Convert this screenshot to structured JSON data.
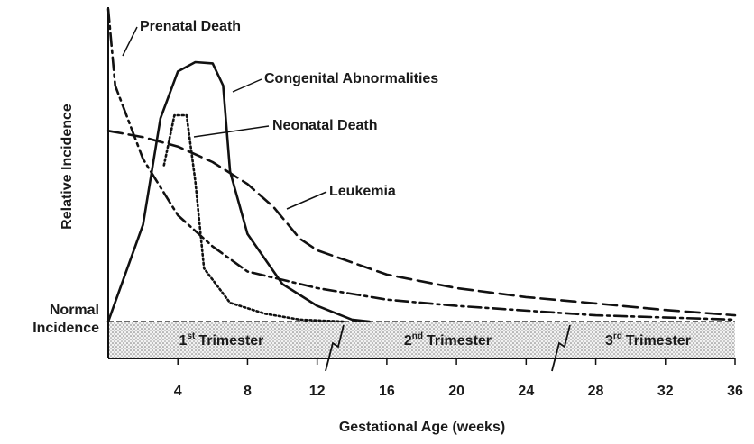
{
  "chart_data": {
    "type": "line",
    "xlabel": "Gestational Age (weeks)",
    "ylabel": "Relative Incidence",
    "xlim": [
      0,
      36
    ],
    "ylim": [
      0,
      100
    ],
    "xticks": [
      4,
      8,
      12,
      16,
      20,
      24,
      28,
      32,
      36
    ],
    "yticks": [
      {
        "value": 0,
        "label": "Normal Incidence"
      }
    ],
    "series": [
      {
        "name": "Prenatal Death",
        "color": "#111111",
        "dash": "dashdot",
        "x": [
          0,
          0.4,
          2,
          4,
          6,
          8,
          12,
          16,
          20,
          28,
          36
        ],
        "values": [
          100,
          75.5,
          52,
          34,
          24,
          16,
          10.7,
          7,
          5,
          2,
          0.6
        ]
      },
      {
        "name": "Congenital Abnormalities",
        "color": "#111111",
        "dash": "solid",
        "x": [
          0,
          2,
          3,
          4,
          5,
          6,
          6.6,
          7,
          8,
          10,
          12,
          14,
          15
        ],
        "values": [
          0,
          31,
          65,
          80,
          83,
          82.6,
          75.5,
          48,
          28,
          12,
          5,
          0.6,
          0
        ]
      },
      {
        "name": "Neonatal Death",
        "color": "#111111",
        "dash": "dotted",
        "x": [
          3.2,
          3.8,
          4.5,
          5,
          5.5,
          7,
          9,
          11,
          13.5
        ],
        "values": [
          50,
          66,
          66,
          45,
          17,
          6,
          2.5,
          0.6,
          0
        ]
      },
      {
        "name": "Leukemia",
        "color": "#111111",
        "dash": "longdash",
        "x": [
          0,
          2,
          4,
          6,
          8,
          9.5,
          11,
          12,
          16,
          20,
          24,
          28,
          32,
          36
        ],
        "values": [
          61,
          59,
          56,
          51,
          44,
          36.6,
          26.5,
          22.8,
          15,
          10.7,
          7.8,
          5.8,
          3.7,
          2
        ]
      }
    ],
    "trimesters": [
      {
        "ordinal": "1",
        "suffix": "st",
        "name": "Trimester",
        "start": 0,
        "end": 13
      },
      {
        "ordinal": "2",
        "suffix": "nd",
        "name": "Trimester",
        "start": 13,
        "end": 26
      },
      {
        "ordinal": "3",
        "suffix": "rd",
        "name": "Trimester",
        "start": 26,
        "end": 36
      }
    ]
  }
}
